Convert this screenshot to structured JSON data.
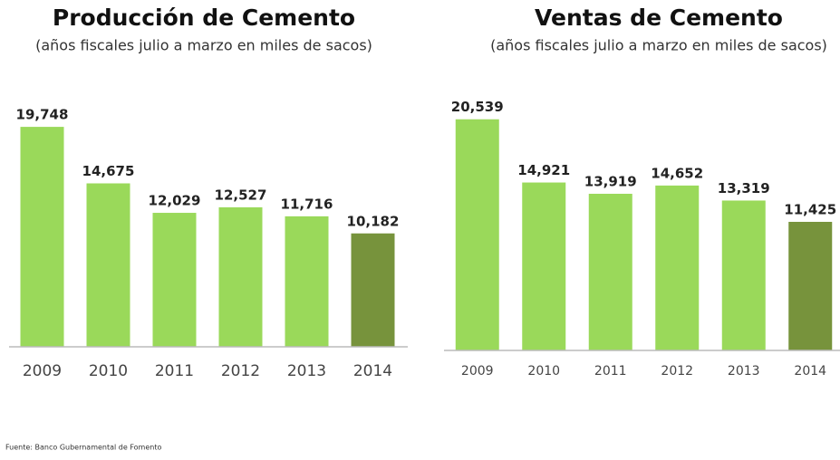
{
  "chart_data": [
    {
      "type": "bar",
      "title": "Producción de Cemento",
      "subtitle": "(años fiscales julio a marzo en miles de sacos)",
      "categories": [
        "2009",
        "2010",
        "2011",
        "2012",
        "2013",
        "2014"
      ],
      "values": [
        19748,
        14675,
        12029,
        12527,
        11716,
        10182
      ],
      "value_labels": [
        "19,748",
        "14,675",
        "12,029",
        "12,527",
        "11,716",
        "10,182"
      ],
      "colors": [
        "#9ad95a",
        "#9ad95a",
        "#9ad95a",
        "#9ad95a",
        "#9ad95a",
        "#77933c"
      ],
      "ylim": [
        0,
        20000
      ]
    },
    {
      "type": "bar",
      "title": "Ventas de Cemento",
      "subtitle": "(años fiscales julio a marzo en miles de sacos)",
      "categories": [
        "2009",
        "2010",
        "2011",
        "2012",
        "2013",
        "2014"
      ],
      "values": [
        20539,
        14921,
        13919,
        14652,
        13319,
        11425
      ],
      "value_labels": [
        "20,539",
        "14,921",
        "13,919",
        "14,652",
        "13,319",
        "11,425"
      ],
      "colors": [
        "#9ad95a",
        "#9ad95a",
        "#9ad95a",
        "#9ad95a",
        "#9ad95a",
        "#77933c"
      ],
      "ylim": [
        0,
        21000
      ]
    }
  ],
  "source": "Fuente: Banco Gubernamental de Fomento"
}
